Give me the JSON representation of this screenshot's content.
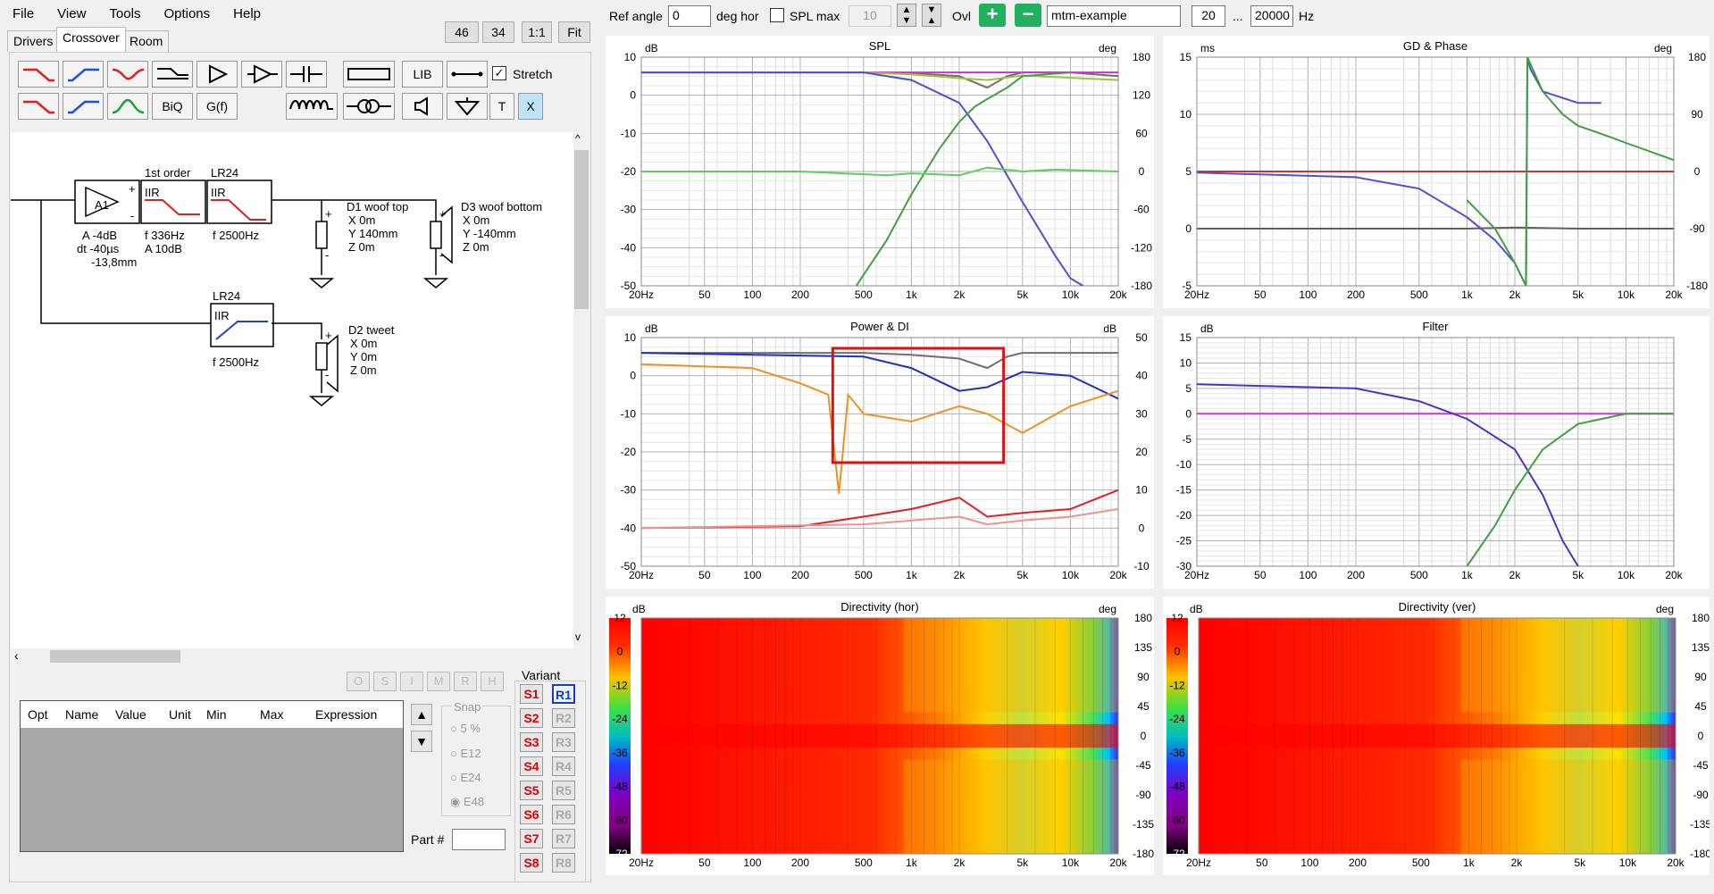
{
  "menu": [
    "File",
    "View",
    "Tools",
    "Options",
    "Help"
  ],
  "tabs": {
    "drivers": "Drivers",
    "crossover": "Crossover",
    "room": "Room"
  },
  "zoom": {
    "z1": "46",
    "z2": "34",
    "z3": "1:1",
    "fit": "Fit"
  },
  "toolbar": {
    "lib": "LIB",
    "stretch": "Stretch",
    "biq": "BiQ",
    "gf": "G(f)",
    "t": "T",
    "x": "X"
  },
  "schematic": {
    "a1": "A1",
    "a1_params": [
      "A  -4dB",
      "dt -40µs",
      "  -13,8mm"
    ],
    "iir1_title": "1st order",
    "iir_label": "IIR",
    "iir1_params": [
      "f  336Hz",
      "A  10dB"
    ],
    "iir2_title": "LR24",
    "iir2_params": [
      "f  2500Hz"
    ],
    "iir3_title": "LR24",
    "iir3_params": [
      "f  2500Hz"
    ],
    "d1": [
      "D1 woof top",
      "X 0m",
      "Y 140mm",
      "Z 0m"
    ],
    "d3": [
      "D3 woof bottom",
      "X 0m",
      "Y -140mm",
      "Z 0m"
    ],
    "d2": [
      "D2 tweet",
      "X 0m",
      "Y 0m",
      "Z 0m"
    ]
  },
  "opt_buttons": [
    "O",
    "S",
    "I",
    "M",
    "R",
    "H"
  ],
  "param_table": {
    "headers": [
      "Opt",
      "Name",
      "Value",
      "Unit",
      "Min",
      "Max",
      "Expression"
    ]
  },
  "snap": {
    "label": "Snap",
    "options": [
      "5 %",
      "E12",
      "E24",
      "E48"
    ],
    "selected": "E48"
  },
  "part_label": "Part #",
  "variant": {
    "label": "Variant",
    "s": [
      "S1",
      "S2",
      "S3",
      "S4",
      "S5",
      "S6",
      "S7",
      "S8"
    ],
    "r": [
      "R1",
      "R2",
      "R3",
      "R4",
      "R5",
      "R6",
      "R7",
      "R8"
    ],
    "selected": "R1"
  },
  "top": {
    "ref_angle_label": "Ref angle",
    "ref_angle": "0",
    "deg_hor": "deg hor",
    "spl_max": "SPL max",
    "spl_max_val": "10",
    "ovl": "Ovl",
    "project": "mtm-example",
    "f_min": "20",
    "dots": "...",
    "f_max": "20000",
    "hz": "Hz"
  },
  "freq_ticks": [
    "20Hz",
    "50",
    "100",
    "200",
    "500",
    "1k",
    "2k",
    "5k",
    "10k",
    "20k"
  ],
  "chart_data": [
    {
      "type": "line",
      "title": "SPL",
      "ylabel": "dB",
      "y2label": "deg",
      "ylim": [
        -50,
        10
      ],
      "y2lim": [
        -180,
        180
      ],
      "yticks": [
        "10",
        "0",
        "-10",
        "-20",
        "-30",
        "-40",
        "-50"
      ],
      "y2ticks": [
        "180",
        "120",
        "60",
        "0",
        "-60",
        "-120",
        "-180"
      ],
      "series": [
        {
          "color": "#707070",
          "x": [
            20,
            100,
            500,
            1000,
            2000,
            3000,
            4000,
            5000,
            10000,
            20000
          ],
          "y": [
            6,
            6,
            6,
            5.8,
            5,
            2,
            5,
            6,
            6,
            5
          ]
        },
        {
          "color": "#cc33cc",
          "x": [
            20,
            20000
          ],
          "y": [
            6,
            6
          ]
        },
        {
          "color": "#a0c040",
          "x": [
            20,
            500,
            1000,
            2000,
            3000,
            5000,
            20000
          ],
          "y": [
            6,
            6,
            5.5,
            4.5,
            4,
            5.2,
            4
          ]
        },
        {
          "color": "#5050d0",
          "x": [
            20,
            500,
            1000,
            2000,
            3000,
            5000,
            8000,
            10000,
            12000
          ],
          "y": [
            6,
            6,
            4,
            -2,
            -12,
            -28,
            -42,
            -48,
            -50
          ]
        },
        {
          "color": "#40a040",
          "x": [
            450,
            700,
            1000,
            1500,
            2000,
            2500,
            3000,
            4000,
            5000,
            10000
          ],
          "y": [
            -50,
            -38,
            -26,
            -14,
            -7,
            -3,
            -1,
            2,
            5,
            6
          ]
        },
        {
          "color": "#60cc60",
          "x": [
            20,
            200,
            700,
            1000,
            2000,
            3000,
            5000,
            8000,
            20000
          ],
          "y": [
            -20,
            -20,
            -21,
            -20.5,
            -21,
            -19,
            -20,
            -19.5,
            -20
          ]
        }
      ]
    },
    {
      "type": "line",
      "title": "GD & Phase",
      "ylabel": "ms",
      "y2label": "deg",
      "ylim": [
        -5,
        15
      ],
      "y2lim": [
        -180,
        180
      ],
      "yticks": [
        "15",
        "10",
        "5",
        "0",
        "-5"
      ],
      "y2ticks": [
        "180",
        "90",
        "0",
        "-90",
        "-180"
      ],
      "series": [
        {
          "color": "#cc3333",
          "x": [
            20,
            20000
          ],
          "y": [
            5,
            5
          ]
        },
        {
          "color": "#606060",
          "x": [
            20,
            1000,
            2000,
            5000,
            20000
          ],
          "y": [
            0,
            0,
            0.1,
            0,
            0
          ]
        },
        {
          "color": "#5050d0",
          "x": [
            20,
            200,
            500,
            1000,
            1500,
            2000,
            2350,
            2400,
            2500,
            3000,
            5000,
            7000
          ],
          "y": [
            4.9,
            4.5,
            3.5,
            1,
            -1,
            -3,
            -5,
            15,
            14,
            12,
            11,
            11
          ]
        },
        {
          "color": "#40a040",
          "x": [
            1000,
            1500,
            2000,
            2350,
            2400,
            3000,
            4000,
            5000,
            8000,
            10000,
            20000
          ],
          "y": [
            2.5,
            0,
            -3,
            -5,
            15,
            12,
            10,
            9,
            8,
            7.5,
            6
          ]
        }
      ]
    },
    {
      "type": "line",
      "title": "Power & DI",
      "ylabel": "dB",
      "y2label": "dB",
      "ylim": [
        -50,
        10
      ],
      "y2lim": [
        -10,
        50
      ],
      "yticks": [
        "10",
        "0",
        "-10",
        "-20",
        "-30",
        "-40",
        "-50"
      ],
      "y2ticks": [
        "50",
        "40",
        "30",
        "20",
        "10",
        "0",
        "-10"
      ],
      "series": [
        {
          "color": "#707070",
          "x": [
            20,
            500,
            1000,
            2000,
            3000,
            4000,
            5000,
            20000
          ],
          "y": [
            6,
            6,
            5.5,
            4.5,
            2,
            5,
            6,
            6
          ]
        },
        {
          "color": "#2030c0",
          "x": [
            20,
            500,
            1000,
            2000,
            3000,
            5000,
            10000,
            20000
          ],
          "y": [
            6,
            5,
            2,
            -4,
            -3,
            1,
            0,
            -6
          ]
        },
        {
          "color": "#f09020",
          "x": [
            20,
            100,
            200,
            300,
            350,
            400,
            500,
            1000,
            2000,
            3000,
            5000,
            10000,
            20000
          ],
          "y": [
            3,
            2,
            -2,
            -5,
            -31,
            -5,
            -10,
            -12,
            -8,
            -10,
            -15,
            -8,
            -4
          ]
        },
        {
          "color": "#e02020",
          "x": [
            20,
            200,
            500,
            1000,
            2000,
            3000,
            5000,
            10000,
            20000
          ],
          "y": [
            -40,
            -39.5,
            -37,
            -35,
            -32,
            -37,
            -36,
            -35,
            -30
          ]
        },
        {
          "color": "#f09090",
          "x": [
            20,
            500,
            1000,
            2000,
            3000,
            5000,
            10000,
            20000
          ],
          "y": [
            -40,
            -39,
            -38,
            -37,
            -39,
            -38,
            -37,
            -35
          ]
        }
      ]
    },
    {
      "type": "line",
      "title": "Filter",
      "ylabel": "dB",
      "ylim": [
        -30,
        15
      ],
      "yticks": [
        "15",
        "10",
        "5",
        "0",
        "-5",
        "-10",
        "-15",
        "-20",
        "-25",
        "-30"
      ],
      "series": [
        {
          "color": "#cc33cc",
          "x": [
            20,
            20000
          ],
          "y": [
            0,
            0
          ]
        },
        {
          "color": "#5030c0",
          "x": [
            20,
            200,
            500,
            1000,
            2000,
            3000,
            4000,
            5000
          ],
          "y": [
            5.8,
            5,
            2.5,
            -1,
            -7,
            -16,
            -25,
            -30
          ]
        },
        {
          "color": "#40a040",
          "x": [
            1000,
            1500,
            2000,
            3000,
            5000,
            10000,
            20000
          ],
          "y": [
            -30,
            -22,
            -15,
            -7,
            -2,
            0,
            0
          ]
        }
      ]
    },
    {
      "type": "heatmap",
      "title": "Directivity (hor)",
      "ylabel": "dB",
      "y2label": "deg",
      "zticks": [
        "12",
        "0",
        "-12",
        "-24",
        "-36",
        "-48",
        "-60",
        "-72"
      ],
      "y2ticks": [
        "180",
        "135",
        "90",
        "45",
        "0",
        "-45",
        "-90",
        "-135",
        "-180"
      ]
    },
    {
      "type": "heatmap",
      "title": "Directivity (ver)",
      "ylabel": "dB",
      "y2label": "deg",
      "zticks": [
        "12",
        "0",
        "-12",
        "-24",
        "-36",
        "-48",
        "-60",
        "-72"
      ],
      "y2ticks": [
        "180",
        "135",
        "90",
        "45",
        "0",
        "-45",
        "-90",
        "-135",
        "-180"
      ]
    }
  ]
}
